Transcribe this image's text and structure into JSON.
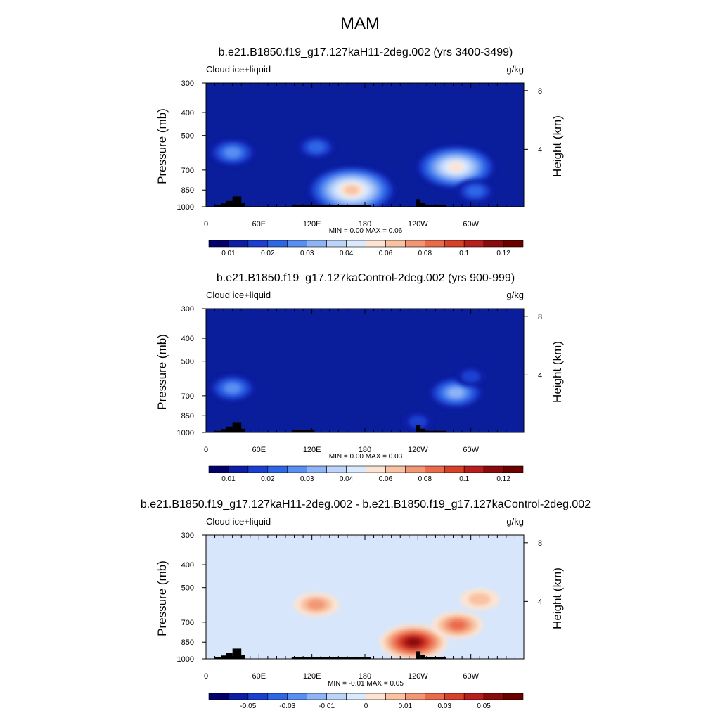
{
  "figure": {
    "title": "MAM"
  },
  "colors": {
    "background_field": "#0a1e9c",
    "diff_background": "#d7e6fb",
    "topography": "#000000",
    "palette": [
      "#02006b",
      "#0c1ea6",
      "#1b3fd0",
      "#2f66e6",
      "#5a8ff2",
      "#8fb4f6",
      "#bcd4fa",
      "#dbe9fd",
      "#fde4d2",
      "#f8c2a3",
      "#f29775",
      "#ea6b4b",
      "#d9402a",
      "#b71f1c",
      "#8a0b0b",
      "#6b0000"
    ]
  },
  "chart_data": [
    {
      "type": "heatmap",
      "title": "b.e21.B1850.f19_g17.127kaH11-2deg.002 (yrs 3400-3499)",
      "left_label": "Cloud ice+liquid",
      "right_label": "g/kg",
      "ylabel": "Pressure (mb)",
      "y2label": "Height (km)",
      "x_ticks": [
        "0",
        "60E",
        "120E",
        "180",
        "120W",
        "60W"
      ],
      "y_ticks": [
        "300",
        "400",
        "500",
        "700",
        "850",
        "1000"
      ],
      "y2_ticks": [
        "8",
        "4"
      ],
      "stats": "MIN =   0.00  MAX =   0.06",
      "colorbar_labels": [
        "0.01",
        "0.02",
        "0.03",
        "0.04",
        "0.06",
        "0.08",
        "0.1",
        "0.12"
      ],
      "features": [
        {
          "lon": 165,
          "p": 850,
          "level": 9
        },
        {
          "lon": 283,
          "p": 680,
          "level": 8
        },
        {
          "lon": 125,
          "p": 560,
          "level": 3
        },
        {
          "lon": 30,
          "p": 590,
          "level": 4
        },
        {
          "lon": 305,
          "p": 860,
          "level": 3
        }
      ]
    },
    {
      "type": "heatmap",
      "title": "b.e21.B1850.f19_g17.127kaControl-2deg.002 (yrs 900-999)",
      "left_label": "Cloud ice+liquid",
      "right_label": "g/kg",
      "ylabel": "Pressure (mb)",
      "y2label": "Height (km)",
      "x_ticks": [
        "0",
        "60E",
        "120E",
        "180",
        "120W",
        "60W"
      ],
      "y_ticks": [
        "300",
        "400",
        "500",
        "700",
        "850",
        "1000"
      ],
      "y2_ticks": [
        "8",
        "4"
      ],
      "stats": "MIN =   0.00  MAX =   0.03",
      "colorbar_labels": [
        "0.01",
        "0.02",
        "0.03",
        "0.04",
        "0.06",
        "0.08",
        "0.1",
        "0.12"
      ],
      "features": [
        {
          "lon": 283,
          "p": 680,
          "level": 5
        },
        {
          "lon": 30,
          "p": 650,
          "level": 4
        },
        {
          "lon": 240,
          "p": 900,
          "level": 2
        },
        {
          "lon": 300,
          "p": 580,
          "level": 2
        }
      ]
    },
    {
      "type": "heatmap",
      "title": "b.e21.B1850.f19_g17.127kaH11-2deg.002 - b.e21.B1850.f19_g17.127kaControl-2deg.002",
      "left_label": "Cloud ice+liquid",
      "right_label": "g/kg",
      "ylabel": "Pressure (mb)",
      "y2label": "Height (km)",
      "x_ticks": [
        "0",
        "60E",
        "120E",
        "180",
        "120W",
        "60W"
      ],
      "y_ticks": [
        "300",
        "400",
        "500",
        "700",
        "850",
        "1000"
      ],
      "y2_ticks": [
        "8",
        "4"
      ],
      "stats": "MIN =  -0.01  MAX =   0.05",
      "colorbar_labels": [
        "-0.05",
        "-0.03",
        "-0.01",
        "0",
        "0.01",
        "0.03",
        "0.05"
      ],
      "features": [
        {
          "lon": 235,
          "p": 850,
          "level": 14
        },
        {
          "lon": 285,
          "p": 720,
          "level": 11
        },
        {
          "lon": 125,
          "p": 590,
          "level": 10
        },
        {
          "lon": 310,
          "p": 560,
          "level": 5
        }
      ]
    }
  ]
}
